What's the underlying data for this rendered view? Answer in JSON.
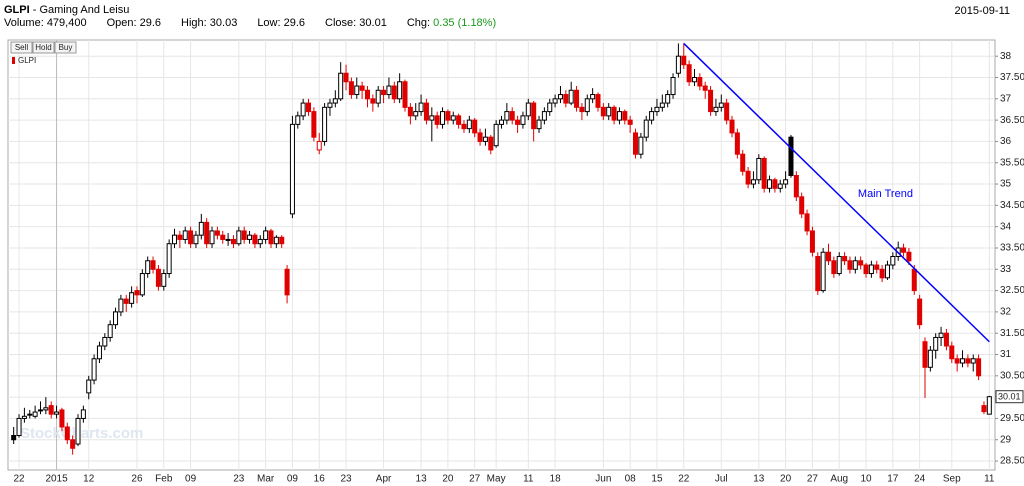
{
  "header": {
    "symbol": "GLPI",
    "name": "- Gaming And Leisu",
    "date": "2015-09-11",
    "fields": [
      {
        "label": "Volume:",
        "value": "479,400"
      },
      {
        "label": "Open:",
        "value": 29.6
      },
      {
        "label": "High:",
        "value": 30.03
      },
      {
        "label": "Low:",
        "value": 29.6
      },
      {
        "label": "Close:",
        "value": 30.01
      },
      {
        "label": "Chg:",
        "value": "0.35 (1.18%)"
      }
    ]
  },
  "buttons": [
    "Sell",
    "Hold",
    "Buy"
  ],
  "watermark": "StockCharts.com",
  "chart_data": {
    "type": "candlestick",
    "name": "GLPI",
    "up_color": "#000000",
    "down_color": "#e00000",
    "grid": true,
    "ylim": [
      28.29,
      38.38
    ],
    "yticks": [
      {
        "value": 28.5,
        "label": "28.50"
      },
      29,
      {
        "value": 29.5,
        "label": "29.50"
      },
      30,
      {
        "value": 30.5,
        "label": "30.50"
      },
      31,
      {
        "value": 31.5,
        "label": "31.50"
      },
      32,
      {
        "value": 32.5,
        "label": "32.50"
      },
      33,
      {
        "value": 33.5,
        "label": "33.50"
      },
      34,
      {
        "value": 34.5,
        "label": "34.50"
      },
      35,
      {
        "value": 35.5,
        "label": "35.50"
      },
      36,
      {
        "value": 36.5,
        "label": "36.50"
      },
      37,
      {
        "value": 37.5,
        "label": "37.50"
      },
      38
    ],
    "categories": [
      null,
      "22",
      null,
      null,
      null,
      null,
      null,
      null,
      "2015",
      null,
      null,
      null,
      null,
      null,
      "12",
      null,
      null,
      null,
      null,
      null,
      null,
      null,
      null,
      "26",
      null,
      null,
      null,
      null,
      "Feb",
      null,
      null,
      null,
      null,
      "09",
      null,
      null,
      null,
      null,
      null,
      null,
      null,
      null,
      "23",
      null,
      null,
      null,
      null,
      "Mar",
      null,
      null,
      null,
      null,
      "09",
      null,
      null,
      null,
      null,
      "16",
      null,
      null,
      null,
      null,
      "23",
      null,
      null,
      null,
      null,
      null,
      null,
      "Apr",
      null,
      null,
      null,
      null,
      null,
      null,
      "13",
      null,
      null,
      null,
      null,
      "20",
      null,
      null,
      null,
      null,
      "27",
      null,
      null,
      null,
      "May",
      null,
      null,
      null,
      null,
      null,
      "11",
      null,
      null,
      null,
      null,
      "18",
      null,
      null,
      null,
      null,
      null,
      null,
      null,
      null,
      "Jun",
      null,
      null,
      null,
      null,
      "08",
      null,
      null,
      null,
      null,
      "15",
      null,
      null,
      null,
      null,
      "22",
      null,
      null,
      null,
      null,
      null,
      null,
      "Jul",
      null,
      null,
      null,
      null,
      null,
      null,
      "13",
      null,
      null,
      null,
      null,
      "20",
      null,
      null,
      null,
      null,
      "27",
      null,
      null,
      null,
      null,
      "Aug",
      null,
      null,
      null,
      null,
      "10",
      null,
      null,
      null,
      null,
      "17",
      null,
      null,
      null,
      null,
      "24",
      null,
      null,
      null,
      null,
      null,
      "Sep",
      null,
      null,
      null,
      null,
      null,
      null,
      "11"
    ],
    "ohlc": [
      [
        29.1,
        29.3,
        28.9,
        29.0
      ],
      [
        29.1,
        29.6,
        29.05,
        29.5
      ],
      [
        29.5,
        29.75,
        29.4,
        29.55
      ],
      [
        29.6,
        29.7,
        29.5,
        29.6
      ],
      [
        29.55,
        29.8,
        29.5,
        29.65
      ],
      [
        29.7,
        29.9,
        29.6,
        29.7
      ],
      [
        29.7,
        30.0,
        29.6,
        29.75
      ],
      [
        29.8,
        29.9,
        29.5,
        29.6
      ],
      [
        29.6,
        29.8,
        29.5,
        29.65
      ],
      [
        29.7,
        29.75,
        29.2,
        29.3
      ],
      [
        29.3,
        29.4,
        28.9,
        29.0
      ],
      [
        29.0,
        29.1,
        28.65,
        28.8
      ],
      [
        28.9,
        29.6,
        28.85,
        29.5
      ],
      [
        29.5,
        29.8,
        29.4,
        29.7
      ],
      [
        30.1,
        30.5,
        29.95,
        30.4
      ],
      [
        30.4,
        31.0,
        30.3,
        30.9
      ],
      [
        30.9,
        31.3,
        30.8,
        31.2
      ],
      [
        31.2,
        31.5,
        31.1,
        31.4
      ],
      [
        31.4,
        31.8,
        31.3,
        31.7
      ],
      [
        31.7,
        32.1,
        31.6,
        32.0
      ],
      [
        32.0,
        32.4,
        31.9,
        32.3
      ],
      [
        32.3,
        32.4,
        32.0,
        32.2
      ],
      [
        32.2,
        32.6,
        32.1,
        32.45
      ],
      [
        32.5,
        32.6,
        32.2,
        32.4
      ],
      [
        32.4,
        33.0,
        32.35,
        32.9
      ],
      [
        32.9,
        33.3,
        32.8,
        33.2
      ],
      [
        33.2,
        33.3,
        32.9,
        33.0
      ],
      [
        33.0,
        33.1,
        32.5,
        32.6
      ],
      [
        32.6,
        33.0,
        32.5,
        32.9
      ],
      [
        32.9,
        33.7,
        32.8,
        33.6
      ],
      [
        33.6,
        33.95,
        33.5,
        33.8
      ],
      [
        33.8,
        33.9,
        33.5,
        33.7
      ],
      [
        33.7,
        34.0,
        33.6,
        33.9
      ],
      [
        33.9,
        34.0,
        33.5,
        33.6
      ],
      [
        33.6,
        33.9,
        33.5,
        33.8
      ],
      [
        33.8,
        34.3,
        33.7,
        34.1
      ],
      [
        34.1,
        34.2,
        33.5,
        33.6
      ],
      [
        33.6,
        34.0,
        33.5,
        33.9
      ],
      [
        33.9,
        34.0,
        33.7,
        33.8
      ],
      [
        33.8,
        33.9,
        33.6,
        33.7
      ],
      [
        33.7,
        33.85,
        33.55,
        33.7
      ],
      [
        33.7,
        33.8,
        33.5,
        33.6
      ],
      [
        33.6,
        34.0,
        33.55,
        33.9
      ],
      [
        33.9,
        34.0,
        33.6,
        33.7
      ],
      [
        33.7,
        33.9,
        33.6,
        33.8
      ],
      [
        33.8,
        33.85,
        33.5,
        33.6
      ],
      [
        33.6,
        33.8,
        33.5,
        33.7
      ],
      [
        33.7,
        34.0,
        33.6,
        33.9
      ],
      [
        33.9,
        33.95,
        33.5,
        33.6
      ],
      [
        33.6,
        33.8,
        33.5,
        33.75
      ],
      [
        33.75,
        33.8,
        33.5,
        33.6
      ],
      [
        33.0,
        33.1,
        32.2,
        32.4
      ],
      [
        34.3,
        36.6,
        34.2,
        36.4
      ],
      [
        36.4,
        36.7,
        36.3,
        36.6
      ],
      [
        36.6,
        37.0,
        36.5,
        36.9
      ],
      [
        36.9,
        37.0,
        36.6,
        36.7
      ],
      [
        36.7,
        36.8,
        36.0,
        36.1
      ],
      [
        35.8,
        36.2,
        35.7,
        36.0
      ],
      [
        36.0,
        36.9,
        35.9,
        36.8
      ],
      [
        36.8,
        37.0,
        36.6,
        36.9
      ],
      [
        36.9,
        37.2,
        36.8,
        37.0
      ],
      [
        37.0,
        37.86,
        36.95,
        37.6
      ],
      [
        37.6,
        37.8,
        37.2,
        37.4
      ],
      [
        37.4,
        37.5,
        37.0,
        37.1
      ],
      [
        37.1,
        37.5,
        37.0,
        37.3
      ],
      [
        37.3,
        37.4,
        37.0,
        37.2
      ],
      [
        37.2,
        37.3,
        36.8,
        37.0
      ],
      [
        37.0,
        37.1,
        36.7,
        36.9
      ],
      [
        36.9,
        37.3,
        36.8,
        37.2
      ],
      [
        37.2,
        37.3,
        36.9,
        37.1
      ],
      [
        37.1,
        37.5,
        37.0,
        37.3
      ],
      [
        37.3,
        37.4,
        36.9,
        37.0
      ],
      [
        37.0,
        37.6,
        36.9,
        37.4
      ],
      [
        37.4,
        37.45,
        36.7,
        36.8
      ],
      [
        36.8,
        36.9,
        36.4,
        36.6
      ],
      [
        36.6,
        36.9,
        36.5,
        36.7
      ],
      [
        36.7,
        37.1,
        36.6,
        36.9
      ],
      [
        36.9,
        37.0,
        36.4,
        36.5
      ],
      [
        36.5,
        36.8,
        36.0,
        36.6
      ],
      [
        36.6,
        36.7,
        36.3,
        36.4
      ],
      [
        36.4,
        36.8,
        36.3,
        36.7
      ],
      [
        36.7,
        36.75,
        36.4,
        36.5
      ],
      [
        36.5,
        36.7,
        36.4,
        36.6
      ],
      [
        36.6,
        36.65,
        36.3,
        36.4
      ],
      [
        36.4,
        36.5,
        36.2,
        36.3
      ],
      [
        36.3,
        36.6,
        36.2,
        36.5
      ],
      [
        36.5,
        36.55,
        36.1,
        36.2
      ],
      [
        36.2,
        36.3,
        35.9,
        36.0
      ],
      [
        36.0,
        36.3,
        35.9,
        36.1
      ],
      [
        36.1,
        36.15,
        35.7,
        35.8
      ],
      [
        35.9,
        36.5,
        35.85,
        36.4
      ],
      [
        36.4,
        36.6,
        36.3,
        36.5
      ],
      [
        36.5,
        36.9,
        36.4,
        36.7
      ],
      [
        36.7,
        36.8,
        36.4,
        36.5
      ],
      [
        36.5,
        36.6,
        36.2,
        36.4
      ],
      [
        36.4,
        36.7,
        36.3,
        36.6
      ],
      [
        36.6,
        37.0,
        36.5,
        36.9
      ],
      [
        36.9,
        36.95,
        36.0,
        36.3
      ],
      [
        36.3,
        36.6,
        36.2,
        36.5
      ],
      [
        36.5,
        36.8,
        36.4,
        36.7
      ],
      [
        36.7,
        37.0,
        36.6,
        36.9
      ],
      [
        36.9,
        37.1,
        36.8,
        37.0
      ],
      [
        37.0,
        37.3,
        36.9,
        37.1
      ],
      [
        37.1,
        37.2,
        36.8,
        36.9
      ],
      [
        36.9,
        37.4,
        36.85,
        37.2
      ],
      [
        37.2,
        37.3,
        36.7,
        36.8
      ],
      [
        36.8,
        36.9,
        36.5,
        36.7
      ],
      [
        36.7,
        37.1,
        36.6,
        37.0
      ],
      [
        37.0,
        37.25,
        36.9,
        37.1
      ],
      [
        37.1,
        37.15,
        36.7,
        36.8
      ],
      [
        36.8,
        36.9,
        36.5,
        36.6
      ],
      [
        36.6,
        36.9,
        36.5,
        36.8
      ],
      [
        36.8,
        36.85,
        36.4,
        36.5
      ],
      [
        36.5,
        36.8,
        36.4,
        36.7
      ],
      [
        36.7,
        36.75,
        36.4,
        36.5
      ],
      [
        36.5,
        36.6,
        36.2,
        36.4
      ],
      [
        36.2,
        36.3,
        35.6,
        35.7
      ],
      [
        35.7,
        36.2,
        35.6,
        36.1
      ],
      [
        36.1,
        36.6,
        36.0,
        36.5
      ],
      [
        36.5,
        36.8,
        36.4,
        36.7
      ],
      [
        36.7,
        37.0,
        36.6,
        36.8
      ],
      [
        36.8,
        37.1,
        36.7,
        36.9
      ],
      [
        36.9,
        37.2,
        36.8,
        37.1
      ],
      [
        37.1,
        37.6,
        37.0,
        37.5
      ],
      [
        37.6,
        38.3,
        37.5,
        38.0
      ],
      [
        38.0,
        38.3,
        37.7,
        37.8
      ],
      [
        37.8,
        37.9,
        37.3,
        37.4
      ],
      [
        37.4,
        37.7,
        37.3,
        37.5
      ],
      [
        37.5,
        37.6,
        37.2,
        37.3
      ],
      [
        37.3,
        37.4,
        37.0,
        37.2
      ],
      [
        37.2,
        37.3,
        36.6,
        36.7
      ],
      [
        36.7,
        37.0,
        36.6,
        36.8
      ],
      [
        36.8,
        37.1,
        36.7,
        36.9
      ],
      [
        36.9,
        37.0,
        36.4,
        36.5
      ],
      [
        36.5,
        36.6,
        36.1,
        36.2
      ],
      [
        36.2,
        36.3,
        35.6,
        35.7
      ],
      [
        35.7,
        35.8,
        35.2,
        35.3
      ],
      [
        35.3,
        35.4,
        34.9,
        35.0
      ],
      [
        35.0,
        35.3,
        34.9,
        35.1
      ],
      [
        35.1,
        35.7,
        35.0,
        35.6
      ],
      [
        35.6,
        35.65,
        34.8,
        34.9
      ],
      [
        34.9,
        35.2,
        34.8,
        35.1
      ],
      [
        35.1,
        35.15,
        34.8,
        34.9
      ],
      [
        34.9,
        35.1,
        34.8,
        35.0
      ],
      [
        35.0,
        35.3,
        34.9,
        35.1
      ],
      [
        36.1,
        36.15,
        35.15,
        35.2
      ],
      [
        35.2,
        35.3,
        34.6,
        34.7
      ],
      [
        34.7,
        34.8,
        34.2,
        34.3
      ],
      [
        34.3,
        34.4,
        33.8,
        33.9
      ],
      [
        33.9,
        34.0,
        33.3,
        33.4
      ],
      [
        33.3,
        33.4,
        32.4,
        32.5
      ],
      [
        32.5,
        33.5,
        32.45,
        33.4
      ],
      [
        33.4,
        33.6,
        33.1,
        33.2
      ],
      [
        33.2,
        33.3,
        32.8,
        32.9
      ],
      [
        32.9,
        33.4,
        32.85,
        33.3
      ],
      [
        33.3,
        33.4,
        33.1,
        33.2
      ],
      [
        33.2,
        33.3,
        32.9,
        33.0
      ],
      [
        33.0,
        33.3,
        32.9,
        33.2
      ],
      [
        33.2,
        33.3,
        33.0,
        33.1
      ],
      [
        33.1,
        33.15,
        32.8,
        32.9
      ],
      [
        32.9,
        33.2,
        32.8,
        33.1
      ],
      [
        33.1,
        33.2,
        32.9,
        33.0
      ],
      [
        33.0,
        33.1,
        32.7,
        32.8
      ],
      [
        32.8,
        33.2,
        32.75,
        33.1
      ],
      [
        33.1,
        33.4,
        33.0,
        33.3
      ],
      [
        33.3,
        33.65,
        33.2,
        33.5
      ],
      [
        33.5,
        33.6,
        33.3,
        33.4
      ],
      [
        33.4,
        33.5,
        33.1,
        33.2
      ],
      [
        33.0,
        33.1,
        32.4,
        32.5
      ],
      [
        32.3,
        32.4,
        31.6,
        31.7
      ],
      [
        31.3,
        31.4,
        29.98,
        30.7
      ],
      [
        30.7,
        31.2,
        30.6,
        31.1
      ],
      [
        31.1,
        31.5,
        30.9,
        31.4
      ],
      [
        31.4,
        31.65,
        31.2,
        31.5
      ],
      [
        31.5,
        31.6,
        31.1,
        31.2
      ],
      [
        31.2,
        31.3,
        30.8,
        30.9
      ],
      [
        30.9,
        31.0,
        30.6,
        30.8
      ],
      [
        30.8,
        31.1,
        30.7,
        30.9
      ],
      [
        30.9,
        31.0,
        30.7,
        30.8
      ],
      [
        30.8,
        31.0,
        30.6,
        30.9
      ],
      [
        30.9,
        31.0,
        30.4,
        30.5
      ],
      [
        29.8,
        29.9,
        29.6,
        29.66
      ],
      [
        29.6,
        30.03,
        29.6,
        30.01
      ]
    ],
    "annotations": [
      {
        "text": "Main Trend",
        "color": "#0000ff",
        "from": [
          125,
          38.3
        ],
        "to": [
          182,
          31.3
        ]
      }
    ]
  }
}
